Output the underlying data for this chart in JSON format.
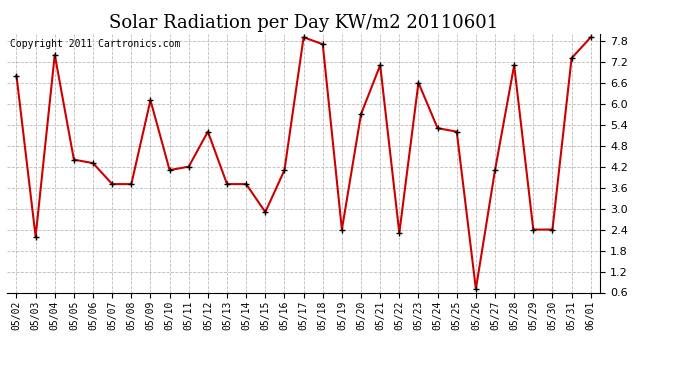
{
  "title": "Solar Radiation per Day KW/m2 20110601",
  "copyright": "Copyright 2011 Cartronics.com",
  "x_labels": [
    "05/02",
    "05/03",
    "05/04",
    "05/05",
    "05/06",
    "05/07",
    "05/08",
    "05/09",
    "05/10",
    "05/11",
    "05/12",
    "05/13",
    "05/14",
    "05/15",
    "05/16",
    "05/17",
    "05/18",
    "05/19",
    "05/20",
    "05/21",
    "05/22",
    "05/23",
    "05/24",
    "05/25",
    "05/26",
    "05/27",
    "05/28",
    "05/29",
    "05/30",
    "05/31",
    "06/01"
  ],
  "y_values": [
    6.8,
    2.2,
    7.4,
    4.4,
    4.3,
    3.7,
    3.7,
    6.1,
    4.1,
    4.2,
    5.2,
    3.7,
    3.7,
    2.9,
    4.1,
    7.9,
    7.7,
    2.4,
    5.7,
    7.1,
    2.3,
    6.6,
    5.3,
    5.2,
    0.7,
    4.1,
    7.1,
    2.4,
    2.4,
    7.3,
    7.9
  ],
  "line_color": "#cc0000",
  "marker_color": "#000000",
  "bg_color": "#ffffff",
  "grid_color": "#bbbbbb",
  "ylim_min": 0.6,
  "ylim_max": 8.0,
  "yticks": [
    0.6,
    1.2,
    1.8,
    2.4,
    3.0,
    3.6,
    4.2,
    4.8,
    5.4,
    6.0,
    6.6,
    7.2,
    7.8
  ],
  "title_fontsize": 13,
  "copyright_fontsize": 7,
  "tick_fontsize": 7,
  "ytick_fontsize": 8
}
